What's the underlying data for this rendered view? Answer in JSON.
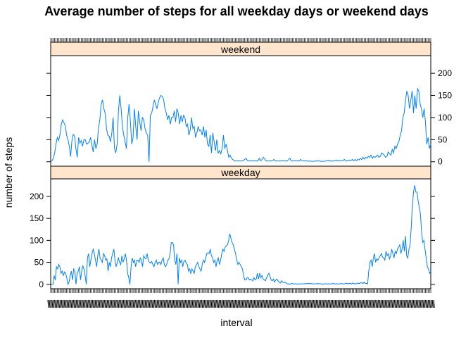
{
  "chart_data": {
    "type": "line",
    "title": "Average number of steps for all weekday days or weekend days",
    "xlabel": "interval",
    "ylabel": "number of steps",
    "ylim": [
      -10,
      240
    ],
    "x_tick_labels_note": "x axis is categorical (288 five-minute intervals); tick labels overlap and are illegible",
    "panels": [
      {
        "name": "weekend",
        "y_ticks": [
          0,
          50,
          100,
          150,
          200
        ],
        "y_axis_side": "right",
        "values": [
          0,
          2,
          8,
          20,
          40,
          55,
          48,
          62,
          85,
          95,
          88,
          82,
          60,
          50,
          35,
          12,
          48,
          62,
          58,
          30,
          10,
          55,
          42,
          48,
          35,
          50,
          50,
          40,
          42,
          45,
          55,
          38,
          22,
          50,
          30,
          40,
          78,
          95,
          130,
          140,
          120,
          110,
          75,
          60,
          58,
          45,
          65,
          100,
          30,
          20,
          40,
          115,
          150,
          120,
          80,
          60,
          45,
          30,
          100,
          130,
          90,
          40,
          55,
          120,
          80,
          50,
          115,
          90,
          70,
          100,
          95,
          75,
          65,
          60,
          0,
          105,
          110,
          125,
          140,
          130,
          120,
          135,
          145,
          150,
          148,
          140,
          120,
          110,
          95,
          105,
          85,
          100,
          100,
          115,
          90,
          120,
          110,
          85,
          105,
          90,
          105,
          100,
          80,
          85,
          60,
          72,
          100,
          75,
          80,
          55,
          65,
          80,
          70,
          72,
          60,
          80,
          55,
          72,
          40,
          35,
          60,
          20,
          65,
          45,
          25,
          50,
          20,
          25,
          18,
          30,
          60,
          30,
          40,
          25,
          10,
          15,
          8,
          5,
          3,
          2,
          2,
          2,
          2,
          2,
          2,
          3,
          5,
          8,
          3,
          2,
          2,
          2,
          3,
          3,
          2,
          2,
          2,
          8,
          2,
          5,
          10,
          7,
          2,
          2,
          2,
          2,
          2,
          3,
          5,
          2,
          2,
          2,
          2,
          2,
          2,
          3,
          2,
          2,
          2,
          5,
          8,
          2,
          2,
          2,
          3,
          2,
          2,
          2,
          5,
          3,
          2,
          2,
          2,
          2,
          1,
          2,
          1,
          1,
          1,
          2,
          1,
          3,
          2,
          1,
          1,
          1,
          1,
          2,
          3,
          2,
          3,
          1,
          2,
          2,
          3,
          4,
          2,
          3,
          2,
          2,
          3,
          5,
          2,
          3,
          2,
          4,
          3,
          5,
          2,
          5,
          3,
          5,
          4,
          8,
          5,
          10,
          6,
          10,
          8,
          12,
          10,
          15,
          8,
          12,
          10,
          12,
          15,
          10,
          12,
          20,
          18,
          15,
          10,
          12,
          22,
          18,
          15,
          28,
          20,
          35,
          30,
          40,
          45,
          60,
          70,
          100,
          110,
          140,
          160,
          150,
          120,
          140,
          160,
          110,
          150,
          120,
          165,
          160,
          130,
          120,
          100,
          120,
          90,
          40,
          55,
          30,
          40
        ],
        "line_color": "#0080ff"
      },
      {
        "name": "weekday",
        "y_ticks": [
          0,
          50,
          100,
          150,
          200
        ],
        "y_axis_side": "left",
        "values": [
          2,
          0,
          0,
          20,
          10,
          40,
          35,
          45,
          40,
          25,
          30,
          20,
          28,
          25,
          15,
          0,
          5,
          20,
          30,
          10,
          35,
          30,
          0,
          25,
          30,
          40,
          10,
          30,
          42,
          35,
          20,
          0,
          60,
          70,
          40,
          55,
          70,
          80,
          70,
          55,
          40,
          65,
          80,
          60,
          55,
          50,
          70,
          65,
          55,
          58,
          30,
          50,
          40,
          60,
          70,
          80,
          55,
          40,
          50,
          60,
          50,
          45,
          65,
          50,
          58,
          70,
          55,
          25,
          15,
          0,
          40,
          60,
          50,
          55,
          40,
          55,
          55,
          50,
          60,
          55,
          40,
          65,
          60,
          58,
          70,
          55,
          50,
          48,
          52,
          45,
          40,
          50,
          55,
          45,
          50,
          50,
          45,
          55,
          60,
          45,
          40,
          45,
          55,
          58,
          70,
          95,
          95,
          90,
          55,
          45,
          70,
          0,
          60,
          50,
          55,
          40,
          52,
          55,
          48,
          45,
          30,
          35,
          25,
          35,
          30,
          25,
          40,
          45,
          50,
          40,
          35,
          30,
          45,
          55,
          50,
          60,
          70,
          72,
          70,
          80,
          65,
          60,
          50,
          55,
          40,
          55,
          60,
          45,
          55,
          70,
          80,
          75,
          85,
          88,
          90,
          100,
          115,
          105,
          95,
          90,
          80,
          70,
          55,
          45,
          50,
          45,
          40,
          35,
          20,
          10,
          10,
          15,
          15,
          10,
          12,
          10,
          8,
          15,
          10,
          12,
          25,
          12,
          25,
          15,
          20,
          12,
          10,
          8,
          15,
          20,
          25,
          18,
          10,
          8,
          12,
          5,
          10,
          12,
          8,
          5,
          3,
          8,
          5,
          4,
          5,
          3,
          1,
          1,
          0,
          1,
          2,
          1,
          1,
          1,
          1,
          0,
          1,
          1,
          1,
          1,
          1,
          1,
          2,
          1,
          2,
          2,
          1,
          2,
          1,
          1,
          1,
          1,
          1,
          2,
          1,
          1,
          1,
          0,
          1,
          1,
          1,
          1,
          1,
          1,
          1,
          1,
          2,
          1,
          1,
          1,
          1,
          1,
          1,
          2,
          1,
          1,
          1,
          3,
          2,
          1,
          2,
          2,
          1,
          3,
          2,
          1,
          1,
          3,
          2,
          2,
          4,
          3,
          2,
          5,
          2,
          2,
          1,
          30,
          50,
          55,
          40,
          60,
          70,
          50,
          58,
          55,
          60,
          65,
          70,
          62,
          60,
          55,
          75,
          65,
          70,
          58,
          65,
          80,
          70,
          60,
          75,
          70,
          80,
          85,
          90,
          70,
          80,
          100,
          75,
          110,
          65,
          60,
          80,
          90,
          130,
          180,
          210,
          225,
          210,
          210,
          190,
          175,
          160,
          120,
          95,
          100,
          80,
          60,
          40,
          35,
          25,
          30
        ]
      }
    ]
  },
  "page": {
    "title": "Average number of steps for all weekday days or weekend days",
    "xlabel": "interval",
    "ylabel": "number of steps",
    "strip_colors": "#ffe5cc",
    "line_color": "#0080ff"
  }
}
